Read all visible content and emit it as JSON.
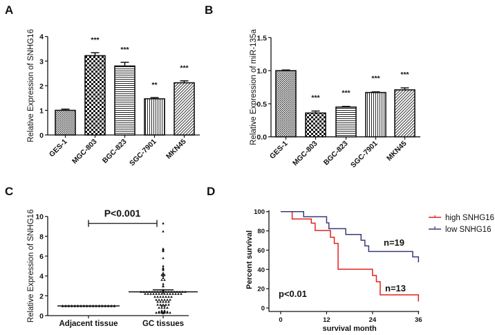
{
  "panels": {
    "A": "A",
    "B": "B",
    "C": "C",
    "D": "D"
  },
  "chart_data": [
    {
      "panel": "A",
      "type": "bar",
      "ylabel": "Relative Expression of SNHG16",
      "xlabel": "",
      "ylim": [
        0,
        4
      ],
      "yticks": [
        0,
        1,
        2,
        3,
        4
      ],
      "categories": [
        "GES-1",
        "MGC-803",
        "BGC-823",
        "SGC-7901",
        "MKN45"
      ],
      "values": [
        1.0,
        3.22,
        2.8,
        1.47,
        2.12
      ],
      "errors": [
        0.05,
        0.12,
        0.15,
        0.05,
        0.08
      ],
      "significance": [
        "",
        "***",
        "***",
        "**",
        "***"
      ],
      "patterns": [
        "fine-crosshatch",
        "checkerboard",
        "horizontal-lines",
        "vertical-lines",
        "diagonal-lines"
      ]
    },
    {
      "panel": "B",
      "type": "bar",
      "ylabel": "Relative Expression of miR-135a",
      "xlabel": "",
      "ylim": [
        0,
        1.5
      ],
      "yticks": [
        "0.0",
        "0.5",
        "1.0",
        "1.5"
      ],
      "categories": [
        "GES-1",
        "MGC-803",
        "BGC-823",
        "SGC-7901",
        "MKN45"
      ],
      "values": [
        1.0,
        0.36,
        0.45,
        0.67,
        0.71
      ],
      "errors": [
        0.01,
        0.03,
        0.01,
        0.01,
        0.03
      ],
      "significance": [
        "",
        "***",
        "***",
        "***",
        "***"
      ],
      "patterns": [
        "fine-crosshatch",
        "checkerboard",
        "horizontal-lines",
        "vertical-lines",
        "diagonal-lines"
      ]
    },
    {
      "panel": "C",
      "type": "scatter",
      "ylabel": "Relative Expression of SNHG16",
      "ylim": [
        0,
        10
      ],
      "yticks": [
        0,
        2,
        4,
        6,
        8,
        10
      ],
      "categories": [
        "Adjacent tissue",
        "GC tissues"
      ],
      "annotation": "P<0.001",
      "series": [
        {
          "category": "Adjacent tissue",
          "mean": 0.98,
          "sem": 0.02,
          "values": [
            1.0,
            1.0,
            1.0,
            1.0,
            1.0,
            1.0,
            1.0,
            1.0,
            1.0,
            1.0,
            1.0,
            1.0,
            1.0,
            1.0,
            1.0,
            1.0,
            1.0,
            1.0,
            0.95,
            0.95,
            0.95,
            0.95,
            0.95,
            0.95,
            0.95,
            0.95,
            0.95,
            0.95,
            0.95,
            0.95,
            0.95,
            0.95,
            0.95,
            0.95,
            0.95,
            0.95
          ]
        },
        {
          "category": "GC tissues",
          "mean": 2.4,
          "sem": 0.2,
          "values": [
            9.3,
            8.5,
            6.7,
            6.6,
            6.5,
            6.75,
            5.8,
            5.0,
            4.8,
            4.7,
            4.6,
            4.3,
            4.2,
            4.1,
            4.0,
            4.1,
            3.8,
            3.6,
            3.6,
            3.2,
            3.0,
            2.95,
            2.6,
            2.55,
            2.5,
            2.45,
            2.4,
            2.4,
            2.4,
            2.4,
            2.4,
            2.4,
            2.4,
            2.4,
            2.4,
            2.4,
            2.4,
            2.4,
            2.4,
            2.4,
            2.4,
            2.4,
            2.4,
            2.2,
            2.2,
            2.2,
            2.2,
            2.2,
            2.2,
            2.2,
            2.2,
            2.2,
            2.2,
            2.2,
            2.2,
            2.2,
            2.2,
            1.9,
            1.9,
            1.9,
            1.9,
            1.9,
            1.9,
            1.9,
            1.6,
            1.6,
            1.6,
            1.6,
            1.6,
            1.6,
            1.4,
            1.4,
            1.4,
            1.4,
            1.4,
            1.1,
            1.1,
            1.1,
            1.1,
            1.1,
            1.0,
            1.0,
            0.8,
            0.8,
            0.8,
            0.8,
            0.5,
            0.5,
            0.45,
            0.45,
            0.4,
            0.4,
            0.4,
            0.4,
            0.35,
            0.35,
            0.3,
            0.3,
            0.3,
            0.3,
            0.3,
            0.3,
            0.25
          ]
        }
      ]
    },
    {
      "panel": "D",
      "type": "line",
      "subtype": "kaplan-meier",
      "xlabel": "survival month",
      "ylabel": "Percent survival",
      "xlim": [
        0,
        36
      ],
      "ylim": [
        0,
        100
      ],
      "xticks": [
        0,
        12,
        24,
        36
      ],
      "yticks": [
        0,
        20,
        40,
        60,
        80,
        100
      ],
      "legend_position": "top-right",
      "annotation": "p<0.01",
      "series": [
        {
          "name": "high SNHG16",
          "color": "#e02020",
          "label": "n=13",
          "steps": [
            [
              0,
              100
            ],
            [
              3,
              92.3
            ],
            [
              8,
              88
            ],
            [
              9,
              80.4
            ],
            [
              13,
              73.4
            ],
            [
              14,
              67
            ],
            [
              15,
              40.2
            ],
            [
              24,
              33.7
            ],
            [
              25,
              27.3
            ],
            [
              26,
              13.6
            ],
            [
              36,
              6.7
            ]
          ]
        },
        {
          "name": "low SNHG16",
          "color": "#3a3a78",
          "label": "n=19",
          "steps": [
            [
              0,
              100
            ],
            [
              6,
              94.7
            ],
            [
              12,
              88.3
            ],
            [
              12.6,
              82.3
            ],
            [
              17,
              76.3
            ],
            [
              21,
              70.3
            ],
            [
              22,
              64.4
            ],
            [
              23,
              58.6
            ],
            [
              34.5,
              53
            ],
            [
              36,
              47.4
            ]
          ]
        }
      ]
    }
  ]
}
